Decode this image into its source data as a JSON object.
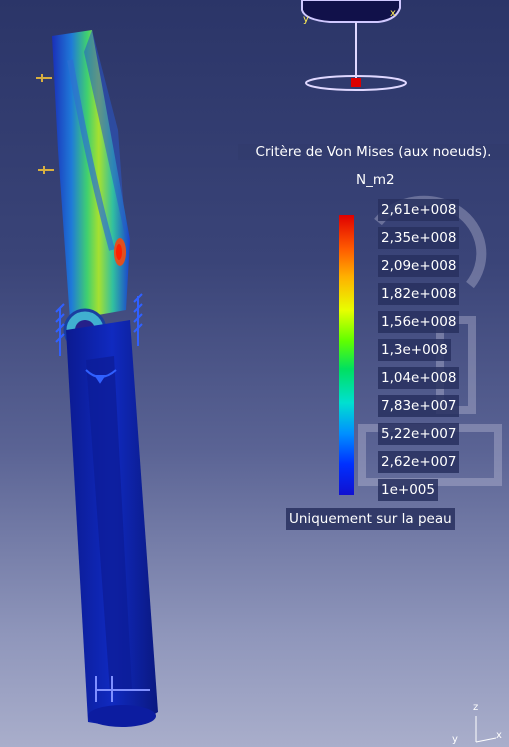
{
  "legend": {
    "title": "Critère de Von Mises (aux noeuds).",
    "unit": "N_m2",
    "ticks": [
      "2,61e+008",
      "2,35e+008",
      "2,09e+008",
      "1,82e+008",
      "1,56e+008",
      "1,3e+008",
      "1,04e+008",
      "7,83e+007",
      "5,22e+007",
      "2,62e+007",
      "1e+005"
    ],
    "footer": "Uniquement sur la peau"
  },
  "axes": {
    "y": "y",
    "z": "z",
    "x": "x"
  },
  "colors": {
    "max_stress": "#e00000",
    "mid_stress": "#60ff00",
    "min_stress": "#1010d0"
  }
}
